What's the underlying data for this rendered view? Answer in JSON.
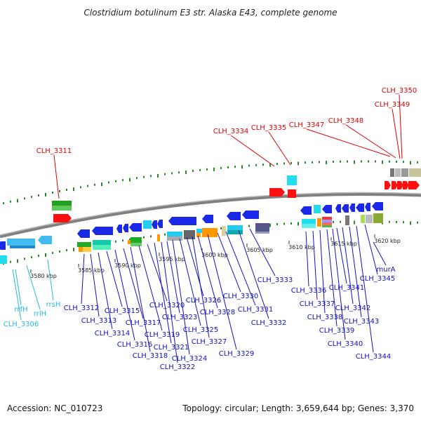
{
  "title": "Clostridium botulinum E3 str. Alaska E43, complete genome",
  "footer": {
    "accession": "Accession: NC_010723",
    "topology": "Topology: circular; Length: 3,659,644 bp; Genes: 3,370"
  },
  "colors": {
    "red_label": "#e00000",
    "blue_label": "#1010c0",
    "cyan_label": "#22bbdd",
    "backbone": "#808080",
    "dots": "#2a8a2a",
    "forward_gene": "#ff1010",
    "reverse_gene": "#1a28e8"
  },
  "scale_ticks": [
    "3580 kbp",
    "3585 kbp",
    "3590 kbp",
    "3595 kbp",
    "3600 kbp",
    "3605 kbp",
    "3610 kbp",
    "3615 kbp",
    "3620 kbp"
  ],
  "labels_top": [
    "CLH_3311",
    "CLH_3334",
    "CLH_3335",
    "CLH_3347",
    "CLH_3348",
    "CLH_3349",
    "CLH_3350"
  ],
  "labels_bottom": [
    "CLH_3312",
    "CLH_3313",
    "CLH_3314",
    "CLH_3315",
    "CLH_3316",
    "CLH_3317",
    "CLH_3318",
    "CLH_3319",
    "CLH_3320",
    "CLH_3321",
    "CLH_3322",
    "CLH_3323",
    "CLH_3324",
    "CLH_3325",
    "CLH_3326",
    "CLH_3327",
    "CLH_3328",
    "CLH_3329",
    "CLH_3330",
    "CLH_3331",
    "CLH_3332",
    "CLH_3333",
    "CLH_3336",
    "CLH_3337",
    "CLH_3338",
    "CLH_3339",
    "CLH_3340",
    "CLH_3341",
    "CLH_3342",
    "CLH_3343",
    "CLH_3344",
    "CLH_3345",
    "murA"
  ],
  "labels_rna": [
    "rrfH",
    "rrlH",
    "rrsH",
    "CLH_3306"
  ]
}
